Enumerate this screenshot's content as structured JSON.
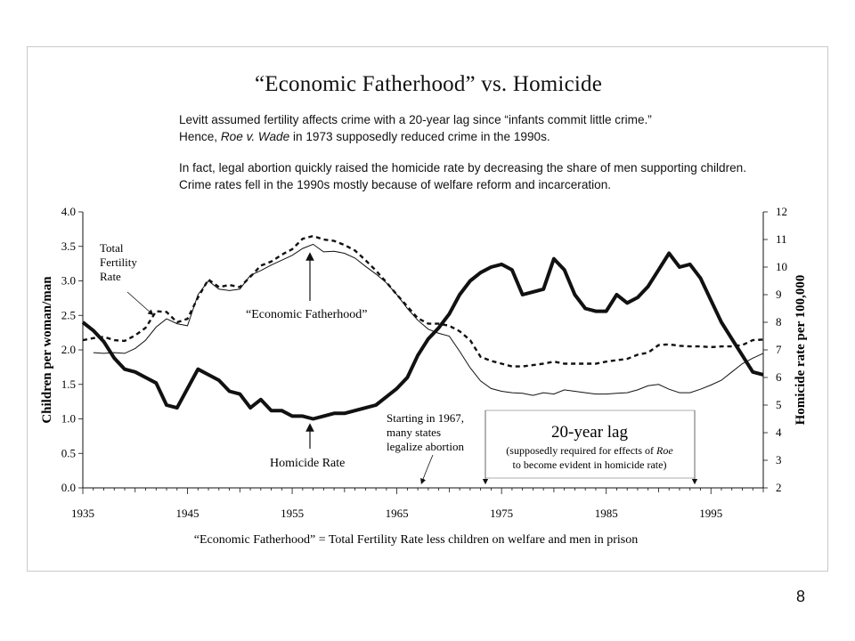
{
  "page_number": "8",
  "chart": {
    "title": "“Economic Fatherhood” vs. Homicide",
    "notes": {
      "line1": "Levitt assumed fertility affects crime with a 20-year lag since “infants commit little crime.”",
      "line2_pre": "Hence, ",
      "line2_italic": "Roe v. Wade",
      "line2_post": " in 1973 supposedly reduced crime in the 1990s.",
      "line3": "In fact, legal abortion quickly raised the homicide rate by decreasing the share of men supporting children.",
      "line4": "Crime rates fell in the 1990s mostly because of welfare reform and incarceration."
    },
    "footnote": "“Economic Fatherhood” =  Total Fertility Rate less children on welfare and men in prison"
  },
  "chart_data": {
    "type": "line",
    "xlabel": "",
    "ylabel": "Children per woman/man",
    "y2label": "Homicide rate per 100,000",
    "xlim": [
      1935,
      2000
    ],
    "ylim": [
      0,
      4
    ],
    "y2lim": [
      2,
      12
    ],
    "x_ticks": [
      1935,
      1945,
      1955,
      1965,
      1975,
      1985,
      1995
    ],
    "y_ticks": [
      "0.0",
      "0.5",
      "1.0",
      "1.5",
      "2.0",
      "2.5",
      "3.0",
      "3.5",
      "4.0"
    ],
    "y2_ticks": [
      "2",
      "3",
      "4",
      "5",
      "6",
      "7",
      "8",
      "9",
      "10",
      "11",
      "12"
    ],
    "series": [
      {
        "name": "Total Fertility Rate",
        "axis": "left",
        "style": "thin-solid",
        "points": [
          [
            1936,
            1.96
          ],
          [
            1937,
            1.95
          ],
          [
            1938,
            1.96
          ],
          [
            1939,
            1.95
          ],
          [
            1940,
            2.02
          ],
          [
            1941,
            2.14
          ],
          [
            1942,
            2.33
          ],
          [
            1943,
            2.45
          ],
          [
            1944,
            2.38
          ],
          [
            1945,
            2.35
          ],
          [
            1946,
            2.8
          ],
          [
            1947,
            3.0
          ],
          [
            1948,
            2.88
          ],
          [
            1949,
            2.86
          ],
          [
            1950,
            2.88
          ],
          [
            1951,
            3.08
          ],
          [
            1952,
            3.15
          ],
          [
            1953,
            3.23
          ],
          [
            1954,
            3.3
          ],
          [
            1955,
            3.37
          ],
          [
            1956,
            3.47
          ],
          [
            1957,
            3.53
          ],
          [
            1958,
            3.42
          ],
          [
            1959,
            3.43
          ],
          [
            1960,
            3.4
          ],
          [
            1961,
            3.33
          ],
          [
            1962,
            3.21
          ],
          [
            1963,
            3.1
          ],
          [
            1964,
            2.97
          ],
          [
            1965,
            2.8
          ],
          [
            1966,
            2.6
          ],
          [
            1967,
            2.43
          ],
          [
            1968,
            2.3
          ],
          [
            1969,
            2.24
          ],
          [
            1970,
            2.2
          ],
          [
            1971,
            1.98
          ],
          [
            1972,
            1.74
          ],
          [
            1973,
            1.55
          ],
          [
            1974,
            1.44
          ],
          [
            1975,
            1.4
          ],
          [
            1976,
            1.38
          ],
          [
            1977,
            1.37
          ],
          [
            1978,
            1.34
          ],
          [
            1979,
            1.38
          ],
          [
            1980,
            1.36
          ],
          [
            1981,
            1.42
          ],
          [
            1982,
            1.4
          ],
          [
            1983,
            1.38
          ],
          [
            1984,
            1.36
          ],
          [
            1985,
            1.36
          ],
          [
            1986,
            1.37
          ],
          [
            1987,
            1.38
          ],
          [
            1988,
            1.42
          ],
          [
            1989,
            1.48
          ],
          [
            1990,
            1.5
          ],
          [
            1991,
            1.43
          ],
          [
            1992,
            1.38
          ],
          [
            1993,
            1.38
          ],
          [
            1994,
            1.43
          ],
          [
            1995,
            1.49
          ],
          [
            1996,
            1.56
          ],
          [
            1997,
            1.68
          ],
          [
            1998,
            1.8
          ],
          [
            1999,
            1.88
          ],
          [
            2000,
            1.95
          ]
        ]
      },
      {
        "name": "“Economic Fatherhood”",
        "axis": "left",
        "style": "dashed",
        "points": [
          [
            1935,
            2.14
          ],
          [
            1936,
            2.17
          ],
          [
            1937,
            2.19
          ],
          [
            1938,
            2.14
          ],
          [
            1939,
            2.13
          ],
          [
            1940,
            2.21
          ],
          [
            1941,
            2.32
          ],
          [
            1942,
            2.56
          ],
          [
            1943,
            2.55
          ],
          [
            1944,
            2.4
          ],
          [
            1945,
            2.45
          ],
          [
            1946,
            2.76
          ],
          [
            1947,
            3.02
          ],
          [
            1948,
            2.91
          ],
          [
            1949,
            2.94
          ],
          [
            1950,
            2.91
          ],
          [
            1951,
            3.06
          ],
          [
            1952,
            3.22
          ],
          [
            1953,
            3.28
          ],
          [
            1954,
            3.38
          ],
          [
            1955,
            3.46
          ],
          [
            1956,
            3.61
          ],
          [
            1957,
            3.65
          ],
          [
            1958,
            3.6
          ],
          [
            1959,
            3.58
          ],
          [
            1960,
            3.52
          ],
          [
            1961,
            3.44
          ],
          [
            1962,
            3.3
          ],
          [
            1963,
            3.15
          ],
          [
            1964,
            2.98
          ],
          [
            1965,
            2.8
          ],
          [
            1966,
            2.63
          ],
          [
            1967,
            2.46
          ],
          [
            1968,
            2.38
          ],
          [
            1969,
            2.38
          ],
          [
            1970,
            2.35
          ],
          [
            1971,
            2.27
          ],
          [
            1972,
            2.14
          ],
          [
            1973,
            1.9
          ],
          [
            1974,
            1.84
          ],
          [
            1975,
            1.8
          ],
          [
            1976,
            1.76
          ],
          [
            1977,
            1.76
          ],
          [
            1978,
            1.78
          ],
          [
            1979,
            1.8
          ],
          [
            1980,
            1.83
          ],
          [
            1981,
            1.8
          ],
          [
            1982,
            1.8
          ],
          [
            1983,
            1.8
          ],
          [
            1984,
            1.8
          ],
          [
            1985,
            1.83
          ],
          [
            1986,
            1.85
          ],
          [
            1987,
            1.87
          ],
          [
            1988,
            1.93
          ],
          [
            1989,
            1.96
          ],
          [
            1990,
            2.07
          ],
          [
            1991,
            2.08
          ],
          [
            1992,
            2.06
          ],
          [
            1993,
            2.05
          ],
          [
            1994,
            2.05
          ],
          [
            1995,
            2.04
          ],
          [
            1996,
            2.05
          ],
          [
            1997,
            2.05
          ],
          [
            1998,
            2.07
          ],
          [
            1999,
            2.14
          ],
          [
            2000,
            2.15
          ]
        ]
      },
      {
        "name": "Homicide Rate",
        "axis": "right",
        "style": "thick-solid",
        "points": [
          [
            1935,
            8.0
          ],
          [
            1936,
            7.7
          ],
          [
            1937,
            7.3
          ],
          [
            1938,
            6.7
          ],
          [
            1939,
            6.3
          ],
          [
            1940,
            6.2
          ],
          [
            1941,
            6.0
          ],
          [
            1942,
            5.8
          ],
          [
            1943,
            5.0
          ],
          [
            1944,
            4.9
          ],
          [
            1945,
            5.6
          ],
          [
            1946,
            6.3
          ],
          [
            1947,
            6.1
          ],
          [
            1948,
            5.9
          ],
          [
            1949,
            5.5
          ],
          [
            1950,
            5.4
          ],
          [
            1951,
            4.9
          ],
          [
            1952,
            5.2
          ],
          [
            1953,
            4.8
          ],
          [
            1954,
            4.8
          ],
          [
            1955,
            4.6
          ],
          [
            1956,
            4.6
          ],
          [
            1957,
            4.5
          ],
          [
            1958,
            4.6
          ],
          [
            1959,
            4.7
          ],
          [
            1960,
            4.7
          ],
          [
            1961,
            4.8
          ],
          [
            1962,
            4.9
          ],
          [
            1963,
            5.0
          ],
          [
            1964,
            5.3
          ],
          [
            1965,
            5.6
          ],
          [
            1966,
            6.0
          ],
          [
            1967,
            6.8
          ],
          [
            1968,
            7.4
          ],
          [
            1969,
            7.8
          ],
          [
            1970,
            8.3
          ],
          [
            1971,
            9.0
          ],
          [
            1972,
            9.5
          ],
          [
            1973,
            9.8
          ],
          [
            1974,
            10.0
          ],
          [
            1975,
            10.1
          ],
          [
            1976,
            9.9
          ],
          [
            1977,
            9.0
          ],
          [
            1978,
            9.1
          ],
          [
            1979,
            9.2
          ],
          [
            1980,
            10.3
          ],
          [
            1981,
            9.9
          ],
          [
            1982,
            9.0
          ],
          [
            1983,
            8.5
          ],
          [
            1984,
            8.4
          ],
          [
            1985,
            8.4
          ],
          [
            1986,
            9.0
          ],
          [
            1987,
            8.7
          ],
          [
            1988,
            8.9
          ],
          [
            1989,
            9.3
          ],
          [
            1990,
            9.9
          ],
          [
            1991,
            10.5
          ],
          [
            1992,
            10.0
          ],
          [
            1993,
            10.1
          ],
          [
            1994,
            9.6
          ],
          [
            1995,
            8.8
          ],
          [
            1996,
            8.0
          ],
          [
            1997,
            7.4
          ],
          [
            1998,
            6.8
          ],
          [
            1999,
            6.2
          ],
          [
            2000,
            6.1
          ]
        ]
      }
    ],
    "annotations": {
      "tfr_label": [
        "Total",
        "Fertility",
        "Rate"
      ],
      "economic_fatherhood_label": "“Economic Fatherhood”",
      "homicide_label": "Homicide Rate",
      "abortion_note": [
        "Starting in 1967,",
        "many states",
        "legalize abortion"
      ],
      "lag_title": "20-year lag",
      "lag_note_line1": "(supposedly required for effects of ",
      "lag_note_roe": "Roe",
      "lag_note_line2": "to become evident in homicide rate)"
    },
    "grid": false
  }
}
